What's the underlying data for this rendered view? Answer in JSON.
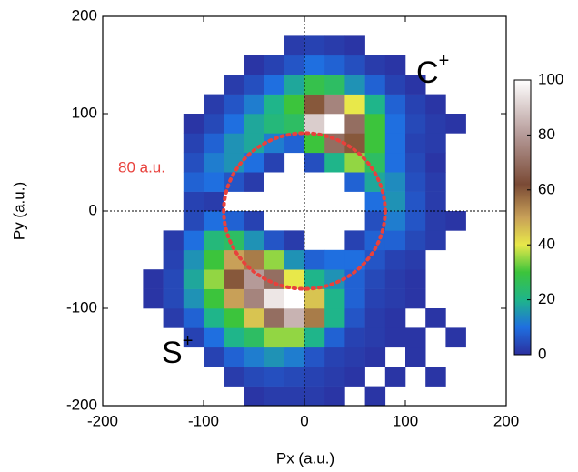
{
  "chart_data": {
    "type": "heatmap",
    "x_label": "Px (a.u.)",
    "y_label": "Py (a.u.)",
    "x_bins": [
      -200,
      -180,
      -160,
      -140,
      -120,
      -100,
      -80,
      -60,
      -40,
      -20,
      0,
      20,
      40,
      60,
      80,
      100,
      120,
      140,
      160,
      180,
      200
    ],
    "y_bins": [
      -200,
      -180,
      -160,
      -140,
      -120,
      -100,
      -80,
      -60,
      -40,
      -20,
      0,
      20,
      40,
      60,
      80,
      100,
      120,
      140,
      160,
      180,
      200
    ],
    "z": [
      [
        null,
        null,
        null,
        null,
        null,
        null,
        null,
        1,
        2,
        2,
        2,
        1,
        null,
        1,
        null,
        null,
        null,
        null,
        null,
        null
      ],
      [
        null,
        null,
        null,
        null,
        null,
        null,
        2,
        4,
        5,
        4,
        3,
        2,
        1,
        null,
        1,
        null,
        1,
        null,
        null,
        null
      ],
      [
        null,
        null,
        null,
        null,
        null,
        3,
        8,
        12,
        15,
        12,
        6,
        3,
        2,
        1,
        null,
        1,
        null,
        null,
        null,
        null
      ],
      [
        null,
        null,
        null,
        null,
        3,
        10,
        20,
        25,
        35,
        35,
        20,
        8,
        3,
        2,
        1,
        1,
        null,
        1,
        null,
        null
      ],
      [
        null,
        null,
        null,
        2,
        8,
        20,
        30,
        45,
        70,
        85,
        55,
        20,
        6,
        2,
        1,
        null,
        1,
        null,
        null,
        null
      ],
      [
        null,
        null,
        1,
        4,
        15,
        30,
        50,
        75,
        95,
        100,
        45,
        20,
        8,
        3,
        2,
        1,
        null,
        null,
        null,
        null
      ],
      [
        null,
        null,
        1,
        4,
        18,
        35,
        60,
        80,
        70,
        40,
        20,
        15,
        8,
        4,
        2,
        1,
        null,
        null,
        null,
        null
      ],
      [
        null,
        null,
        null,
        3,
        15,
        30,
        50,
        55,
        35,
        15,
        8,
        10,
        10,
        6,
        3,
        2,
        null,
        null,
        null,
        null
      ],
      [
        null,
        null,
        null,
        2,
        10,
        22,
        25,
        15,
        6,
        2,
        null,
        null,
        3,
        8,
        8,
        4,
        2,
        null,
        null,
        null
      ],
      [
        null,
        null,
        null,
        null,
        4,
        10,
        8,
        3,
        null,
        null,
        null,
        null,
        null,
        5,
        12,
        6,
        2,
        1,
        null,
        null
      ],
      [
        null,
        null,
        null,
        null,
        3,
        2,
        null,
        null,
        null,
        null,
        null,
        null,
        null,
        10,
        15,
        6,
        2,
        null,
        null,
        null
      ],
      [
        null,
        null,
        null,
        null,
        8,
        10,
        6,
        2,
        null,
        null,
        null,
        null,
        8,
        18,
        14,
        5,
        2,
        null,
        null,
        null
      ],
      [
        null,
        null,
        null,
        null,
        5,
        12,
        15,
        10,
        3,
        null,
        5,
        20,
        35,
        25,
        10,
        4,
        1,
        null,
        null,
        null
      ],
      [
        null,
        null,
        null,
        null,
        3,
        8,
        15,
        18,
        12,
        8,
        30,
        70,
        60,
        30,
        10,
        3,
        2,
        null,
        null,
        null
      ],
      [
        null,
        null,
        null,
        null,
        1,
        4,
        10,
        18,
        22,
        25,
        90,
        100,
        70,
        30,
        10,
        4,
        2,
        1,
        null,
        null
      ],
      [
        null,
        null,
        null,
        null,
        null,
        2,
        6,
        12,
        20,
        30,
        60,
        75,
        40,
        20,
        8,
        3,
        1,
        null,
        null,
        null
      ],
      [
        null,
        null,
        null,
        null,
        null,
        null,
        2,
        5,
        10,
        18,
        28,
        25,
        15,
        8,
        3,
        1,
        null,
        null,
        null,
        null
      ],
      [
        null,
        null,
        null,
        null,
        null,
        null,
        null,
        1,
        3,
        6,
        10,
        8,
        5,
        2,
        1,
        null,
        null,
        null,
        null,
        null
      ],
      [
        null,
        null,
        null,
        null,
        null,
        null,
        null,
        null,
        null,
        2,
        3,
        2,
        1,
        null,
        null,
        null,
        null,
        null,
        null,
        null
      ],
      [
        null,
        null,
        null,
        null,
        null,
        null,
        null,
        null,
        null,
        null,
        null,
        null,
        null,
        null,
        null,
        null,
        null,
        null,
        null,
        null
      ]
    ],
    "xlim": [
      -200,
      200
    ],
    "ylim": [
      -200,
      200
    ],
    "xticks": [
      -200,
      -100,
      0,
      100,
      200
    ],
    "yticks": [
      -200,
      -100,
      0,
      100,
      200
    ],
    "zlim": [
      0,
      100
    ],
    "zticks": [
      0,
      20,
      40,
      60,
      80,
      100
    ],
    "colorscale": [
      [
        0,
        "#2b2f9e"
      ],
      [
        10,
        "#1f6fe0"
      ],
      [
        20,
        "#1fb58a"
      ],
      [
        30,
        "#3cc43c"
      ],
      [
        40,
        "#e8e84a"
      ],
      [
        50,
        "#c8a058"
      ],
      [
        62,
        "#7a4a35"
      ],
      [
        80,
        "#b59a98"
      ],
      [
        100,
        "#ffffff"
      ]
    ],
    "zero_lines": true,
    "circle": {
      "radius": 80,
      "label": "80 a.u.",
      "color": "#e8413c"
    },
    "annotations": [
      {
        "text": "C",
        "sup": "+"
      },
      {
        "text": "S",
        "sup": "+"
      }
    ]
  }
}
